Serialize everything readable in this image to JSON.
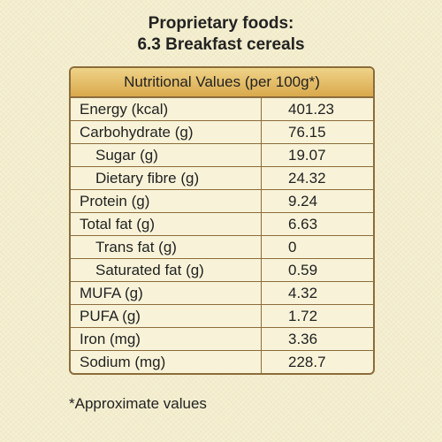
{
  "header": {
    "title_line1": "Proprietary foods:",
    "title_line2": "6.3 Breakfast cereals"
  },
  "table": {
    "heading": "Nutritional Values (per 100g*)",
    "rows": [
      [
        "Energy (kcal)",
        "401.23"
      ],
      [
        "Carbohydrate (g)",
        "76.15"
      ],
      [
        "Sugar (g)",
        "19.07"
      ],
      [
        "Dietary fibre (g)",
        "24.32"
      ],
      [
        "Protein (g)",
        "9.24"
      ],
      [
        "Total fat (g)",
        "6.63"
      ],
      [
        "Trans fat (g)",
        "0"
      ],
      [
        "Saturated fat (g)",
        "0.59"
      ],
      [
        "MUFA (g)",
        "4.32"
      ],
      [
        "PUFA (g)",
        "1.72"
      ],
      [
        "Iron (mg)",
        "3.36"
      ],
      [
        "Sodium (mg)",
        "228.7"
      ]
    ]
  },
  "footnote": "*Approximate values"
}
